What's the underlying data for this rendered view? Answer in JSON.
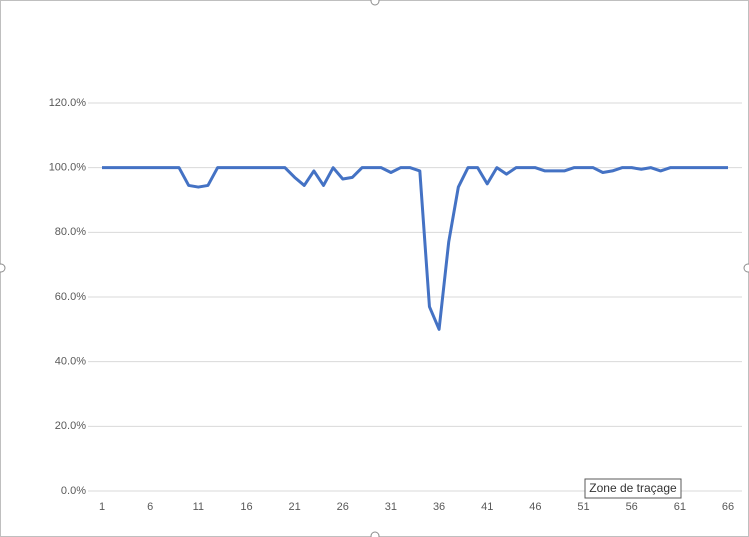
{
  "chart_data": {
    "type": "line",
    "categories": [
      "1",
      null,
      null,
      null,
      null,
      "6",
      null,
      null,
      null,
      null,
      "11",
      null,
      null,
      null,
      null,
      "16",
      null,
      null,
      null,
      null,
      "21",
      null,
      null,
      null,
      null,
      "26",
      null,
      null,
      null,
      null,
      "31",
      null,
      null,
      null,
      null,
      "36",
      null,
      null,
      null,
      null,
      "41",
      null,
      null,
      null,
      null,
      "46",
      null,
      null,
      null,
      null,
      "51",
      null,
      null,
      null,
      null,
      "56",
      null,
      null,
      null,
      null,
      "61",
      null,
      null,
      null,
      null,
      "66"
    ],
    "series": [
      {
        "color": "#4472c4",
        "values": [
          100,
          100,
          100,
          100,
          100,
          100,
          100,
          100,
          100,
          94.5,
          94,
          94.5,
          100,
          100,
          100,
          100,
          100,
          100,
          100,
          100,
          97,
          94.5,
          99,
          94.5,
          100,
          96.5,
          97,
          100,
          100,
          100,
          98.5,
          100,
          100,
          99,
          57,
          50,
          77,
          94,
          100,
          100,
          95,
          100,
          98,
          100,
          100,
          100,
          99,
          99,
          99,
          100,
          100,
          100,
          98.5,
          99,
          100,
          100,
          99.5,
          100,
          99,
          100,
          100,
          100,
          100,
          100,
          100,
          100
        ]
      }
    ],
    "ylim": [
      0,
      120
    ],
    "yticks": [
      {
        "value": 0,
        "label": "0.0%"
      },
      {
        "value": 20,
        "label": "20.0%"
      },
      {
        "value": 40,
        "label": "40.0%"
      },
      {
        "value": 60,
        "label": "60.0%"
      },
      {
        "value": 80,
        "label": "80.0%"
      },
      {
        "value": 100,
        "label": "100.0%"
      },
      {
        "value": 120,
        "label": "120.0%"
      }
    ],
    "grid": true,
    "tooltip": "Zone de traçage"
  }
}
